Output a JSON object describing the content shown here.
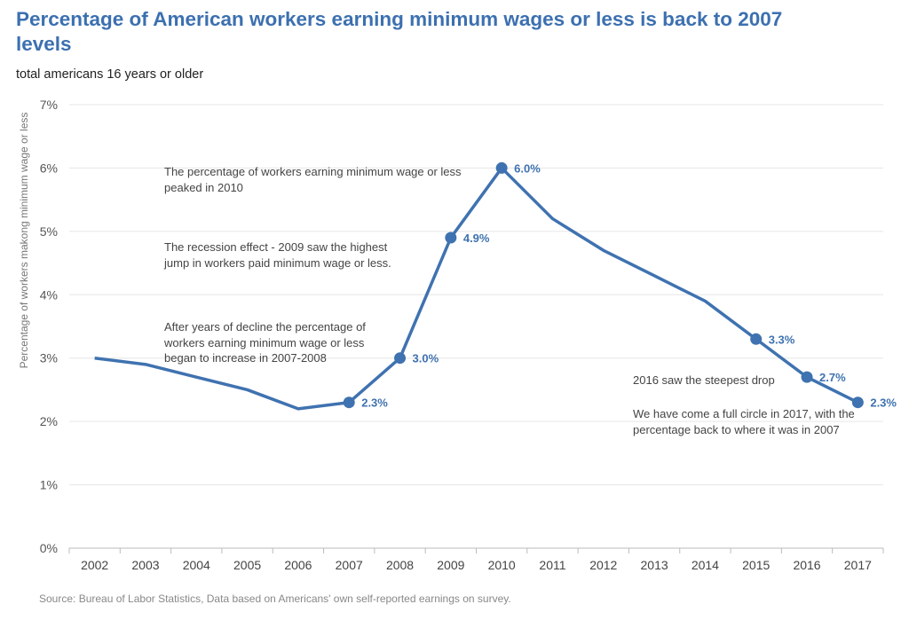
{
  "title": "Percentage of American workers earning minimum wages or less is back to 2007 levels",
  "subtitle": "total americans 16 years or older",
  "source": "Source: Bureau of Labor Statistics, Data based on Americans' own self-reported earnings on survey.",
  "colors": {
    "line": "#3f72b0",
    "title": "#3c70b0",
    "grid": "#e6e6e6"
  },
  "annotations": {
    "peak": "The percentage of workers earning minimum wage or less peaked in 2010",
    "recession": "The recession effect - 2009 saw the highest jump in workers paid minimum wage or less.",
    "decline": "After years of decline the percentage of workers earning minimum wage or less began to increase in 2007-2008",
    "steepest": "2016 saw the steepest drop",
    "circle": "We have come a full circle in 2017, with the percentage back to where it was in 2007"
  },
  "chart_data": {
    "type": "line",
    "title": "Percentage of American workers earning minimum wages or less is back to 2007 levels",
    "subtitle": "total americans 16 years or older",
    "xlabel": "",
    "ylabel": "Percentage of workers makong minimum wage or less",
    "categories": [
      "2002",
      "2003",
      "2004",
      "2005",
      "2006",
      "2007",
      "2008",
      "2009",
      "2010",
      "2011",
      "2012",
      "2013",
      "2014",
      "2015",
      "2016",
      "2017"
    ],
    "values": [
      3.0,
      2.9,
      2.7,
      2.5,
      2.2,
      2.3,
      3.0,
      4.9,
      6.0,
      5.2,
      4.7,
      4.3,
      3.9,
      3.3,
      2.7,
      2.3
    ],
    "labeled_points": [
      "2007",
      "2008",
      "2009",
      "2010",
      "2015",
      "2016",
      "2017"
    ],
    "ylim": [
      0,
      7
    ],
    "yticks": [
      "0%",
      "1%",
      "2%",
      "3%",
      "4%",
      "5%",
      "6%",
      "7%"
    ],
    "grid": true,
    "legend": "none"
  }
}
